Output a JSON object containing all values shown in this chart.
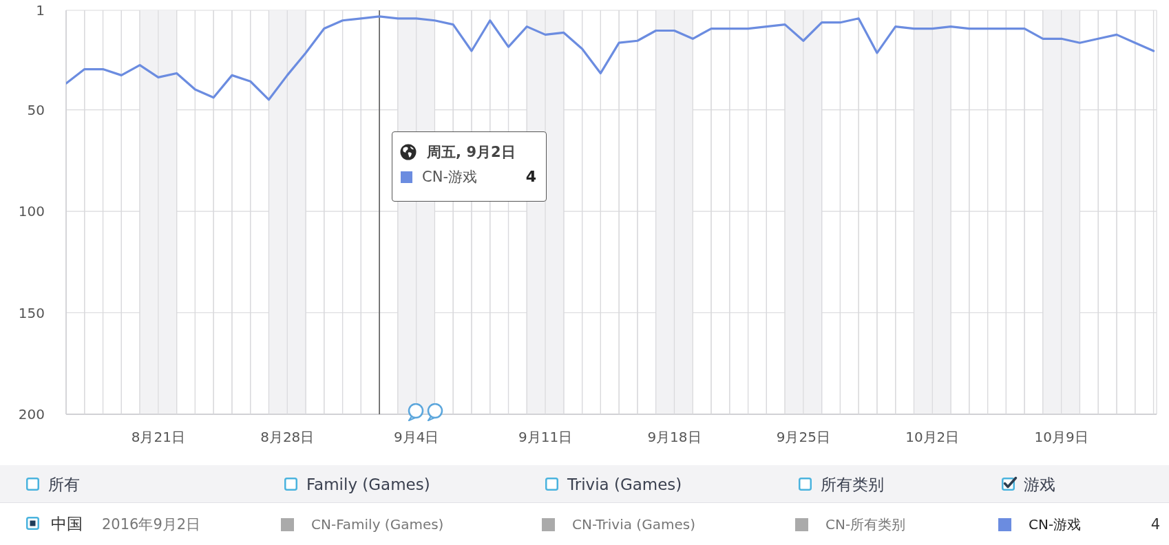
{
  "chart_data": {
    "type": "line",
    "x": [
      "2016-08-16",
      "2016-08-17",
      "2016-08-18",
      "2016-08-19",
      "2016-08-20",
      "2016-08-21",
      "2016-08-22",
      "2016-08-23",
      "2016-08-24",
      "2016-08-25",
      "2016-08-26",
      "2016-08-27",
      "2016-08-28",
      "2016-08-29",
      "2016-08-30",
      "2016-08-31",
      "2016-09-01",
      "2016-09-02",
      "2016-09-03",
      "2016-09-04",
      "2016-09-05",
      "2016-09-06",
      "2016-09-07",
      "2016-09-08",
      "2016-09-09",
      "2016-09-10",
      "2016-09-11",
      "2016-09-12",
      "2016-09-13",
      "2016-09-14",
      "2016-09-15",
      "2016-09-16",
      "2016-09-17",
      "2016-09-18",
      "2016-09-19",
      "2016-09-20",
      "2016-09-21",
      "2016-09-22",
      "2016-09-23",
      "2016-09-24",
      "2016-09-25",
      "2016-09-26",
      "2016-09-27",
      "2016-09-28",
      "2016-09-29",
      "2016-09-30",
      "2016-10-01",
      "2016-10-02",
      "2016-10-03",
      "2016-10-04",
      "2016-10-05",
      "2016-10-06",
      "2016-10-07",
      "2016-10-08",
      "2016-10-09",
      "2016-10-10",
      "2016-10-11",
      "2016-10-12",
      "2016-10-13",
      "2016-10-14"
    ],
    "series": [
      {
        "name": "CN-Family (Games)",
        "color": "#aaaaaa",
        "values": [
          null,
          null,
          null,
          null,
          null,
          null,
          null,
          null,
          null,
          null,
          null,
          null,
          null,
          null,
          null,
          null,
          null,
          null,
          null,
          null,
          null,
          null,
          null,
          null,
          null,
          null,
          null,
          null,
          null,
          null,
          null,
          null,
          null,
          null,
          null,
          null,
          null,
          null,
          null,
          null,
          null,
          null,
          null,
          null,
          null,
          null,
          null,
          null,
          null,
          null,
          null,
          null,
          null,
          null,
          null,
          null,
          null,
          null,
          null,
          null
        ]
      },
      {
        "name": "CN-Trivia (Games)",
        "color": "#aaaaaa",
        "values": [
          null,
          null,
          null,
          null,
          null,
          null,
          null,
          null,
          null,
          null,
          null,
          null,
          null,
          null,
          null,
          null,
          null,
          null,
          null,
          null,
          null,
          null,
          null,
          null,
          null,
          null,
          null,
          null,
          null,
          null,
          null,
          null,
          null,
          null,
          null,
          null,
          null,
          null,
          null,
          null,
          null,
          null,
          null,
          null,
          null,
          null,
          null,
          null,
          null,
          null,
          null,
          null,
          null,
          null,
          null,
          null,
          null,
          null,
          null,
          null
        ]
      },
      {
        "name": "CN-所有类别",
        "color": "#aaaaaa",
        "values": [
          null,
          null,
          null,
          null,
          null,
          null,
          null,
          null,
          null,
          null,
          null,
          null,
          null,
          null,
          null,
          null,
          null,
          null,
          null,
          null,
          null,
          null,
          null,
          null,
          null,
          null,
          null,
          null,
          null,
          null,
          null,
          null,
          null,
          null,
          null,
          null,
          null,
          null,
          null,
          null,
          null,
          null,
          null,
          null,
          null,
          null,
          null,
          null,
          null,
          null,
          null,
          null,
          null,
          null,
          null,
          null,
          null,
          null,
          null,
          null
        ]
      },
      {
        "name": "CN-游戏",
        "color": "#6b8ce0",
        "values": [
          37,
          30,
          30,
          33,
          28,
          34,
          32,
          40,
          44,
          33,
          36,
          45,
          33,
          22,
          10,
          6,
          5,
          4,
          5,
          5,
          6,
          8,
          21,
          6,
          19,
          9,
          13,
          12,
          20,
          32,
          17,
          16,
          11,
          11,
          15,
          10,
          10,
          10,
          9,
          8,
          16,
          7,
          7,
          5,
          22,
          9,
          10,
          10,
          9,
          10,
          10,
          10,
          10,
          15,
          15,
          17,
          15,
          13,
          17,
          21
        ]
      }
    ],
    "xlim": [
      "2016-08-16",
      "2016-10-14T04:00"
    ],
    "xticks": [
      {
        "value": "2016-08-16",
        "label": null
      },
      {
        "value": "2016-08-17",
        "label": null
      },
      {
        "value": "2016-08-18",
        "label": null
      },
      {
        "value": "2016-08-19",
        "label": null
      },
      {
        "value": "2016-08-20",
        "label": null
      },
      {
        "value": "2016-08-21",
        "label": "8月21日"
      },
      {
        "value": "2016-08-22",
        "label": null
      },
      {
        "value": "2016-08-23",
        "label": null
      },
      {
        "value": "2016-08-24",
        "label": null
      },
      {
        "value": "2016-08-25",
        "label": null
      },
      {
        "value": "2016-08-26",
        "label": null
      },
      {
        "value": "2016-08-27",
        "label": null
      },
      {
        "value": "2016-08-28",
        "label": "8月28日"
      },
      {
        "value": "2016-08-29",
        "label": null
      },
      {
        "value": "2016-08-30",
        "label": null
      },
      {
        "value": "2016-08-31",
        "label": null
      },
      {
        "value": "2016-09-01",
        "label": null
      },
      {
        "value": "2016-09-02",
        "label": null
      },
      {
        "value": "2016-09-03",
        "label": null
      },
      {
        "value": "2016-09-04",
        "label": "9月4日"
      },
      {
        "value": "2016-09-05",
        "label": null
      },
      {
        "value": "2016-09-06",
        "label": null
      },
      {
        "value": "2016-09-07",
        "label": null
      },
      {
        "value": "2016-09-08",
        "label": null
      },
      {
        "value": "2016-09-09",
        "label": null
      },
      {
        "value": "2016-09-10",
        "label": null
      },
      {
        "value": "2016-09-11",
        "label": "9月11日"
      },
      {
        "value": "2016-09-12",
        "label": null
      },
      {
        "value": "2016-09-13",
        "label": null
      },
      {
        "value": "2016-09-14",
        "label": null
      },
      {
        "value": "2016-09-15",
        "label": null
      },
      {
        "value": "2016-09-16",
        "label": null
      },
      {
        "value": "2016-09-17",
        "label": null
      },
      {
        "value": "2016-09-18",
        "label": "9月18日"
      },
      {
        "value": "2016-09-19",
        "label": null
      },
      {
        "value": "2016-09-20",
        "label": null
      },
      {
        "value": "2016-09-21",
        "label": null
      },
      {
        "value": "2016-09-22",
        "label": null
      },
      {
        "value": "2016-09-23",
        "label": null
      },
      {
        "value": "2016-09-24",
        "label": null
      },
      {
        "value": "2016-09-25",
        "label": "9月25日"
      },
      {
        "value": "2016-09-26",
        "label": null
      },
      {
        "value": "2016-09-27",
        "label": null
      },
      {
        "value": "2016-09-28",
        "label": null
      },
      {
        "value": "2016-09-29",
        "label": null
      },
      {
        "value": "2016-09-30",
        "label": null
      },
      {
        "value": "2016-10-01",
        "label": null
      },
      {
        "value": "2016-10-02",
        "label": "10月2日"
      },
      {
        "value": "2016-10-03",
        "label": null
      },
      {
        "value": "2016-10-04",
        "label": null
      },
      {
        "value": "2016-10-05",
        "label": null
      },
      {
        "value": "2016-10-06",
        "label": null
      },
      {
        "value": "2016-10-07",
        "label": null
      },
      {
        "value": "2016-10-08",
        "label": null
      },
      {
        "value": "2016-10-09",
        "label": "10月9日"
      },
      {
        "value": "2016-10-10",
        "label": null
      },
      {
        "value": "2016-10-11",
        "label": null
      },
      {
        "value": "2016-10-12",
        "label": null
      },
      {
        "value": "2016-10-13",
        "label": null
      },
      {
        "value": "2016-10-14",
        "label": null
      }
    ],
    "ylim": [
      200,
      1
    ],
    "yticks": [
      1,
      50,
      100,
      150,
      200
    ],
    "grid": true,
    "marker": "none",
    "legend": "bottom",
    "ref_lines": [
      {
        "axis": "x",
        "value": "2016-09-02",
        "color": "#555555"
      }
    ],
    "bands": [
      {
        "axis": "x",
        "from": "2016-08-20",
        "to": "2016-08-22",
        "color": "#f2f2f4"
      },
      {
        "axis": "x",
        "from": "2016-08-27",
        "to": "2016-08-29",
        "color": "#f2f2f4"
      },
      {
        "axis": "x",
        "from": "2016-09-03",
        "to": "2016-09-05",
        "color": "#f2f2f4"
      },
      {
        "axis": "x",
        "from": "2016-09-10",
        "to": "2016-09-12",
        "color": "#f2f2f4"
      },
      {
        "axis": "x",
        "from": "2016-09-17",
        "to": "2016-09-19",
        "color": "#f2f2f4"
      },
      {
        "axis": "x",
        "from": "2016-09-24",
        "to": "2016-09-26",
        "color": "#f2f2f4"
      },
      {
        "axis": "x",
        "from": "2016-10-01",
        "to": "2016-10-03",
        "color": "#f2f2f4"
      },
      {
        "axis": "x",
        "from": "2016-10-08",
        "to": "2016-10-10",
        "color": "#f2f2f4"
      }
    ],
    "annotations": [
      "周五, 9月2日",
      "所有",
      "Family (Games)",
      "Trivia (Games)",
      "所有类别",
      "游戏",
      "中国",
      "2016年9月2日",
      "4",
      "4"
    ]
  }
}
